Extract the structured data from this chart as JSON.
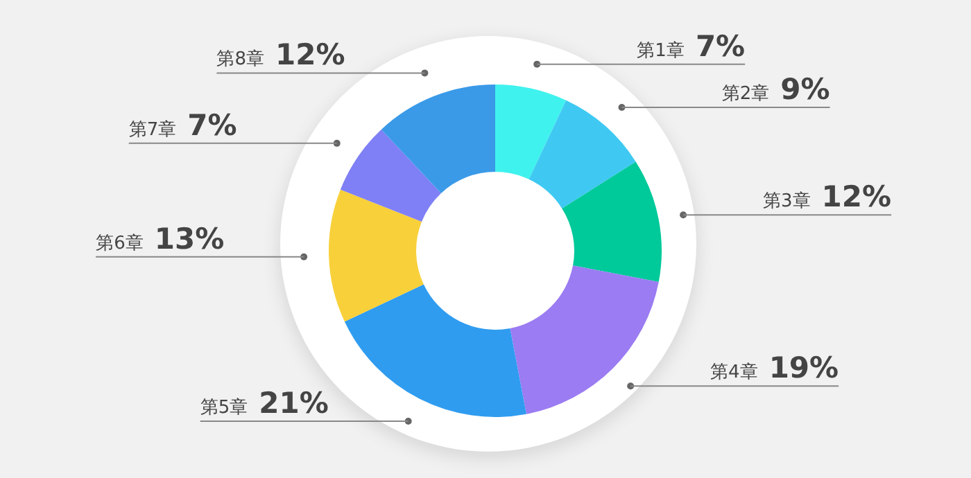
{
  "chart_data": {
    "type": "donut",
    "categories": [
      "第1章",
      "第2章",
      "第3章",
      "第4章",
      "第5章",
      "第6章",
      "第7章",
      "第8章"
    ],
    "values": [
      7,
      9,
      12,
      19,
      21,
      13,
      7,
      12
    ],
    "value_labels": [
      "7%",
      "9%",
      "12%",
      "19%",
      "21%",
      "13%",
      "7%",
      "12%"
    ],
    "colors": [
      "#40f2ee",
      "#3fc9f2",
      "#00c99a",
      "#9b7cf2",
      "#2f9cf0",
      "#f8d03a",
      "#7f80f5",
      "#3a9ae8"
    ],
    "legend": false
  }
}
